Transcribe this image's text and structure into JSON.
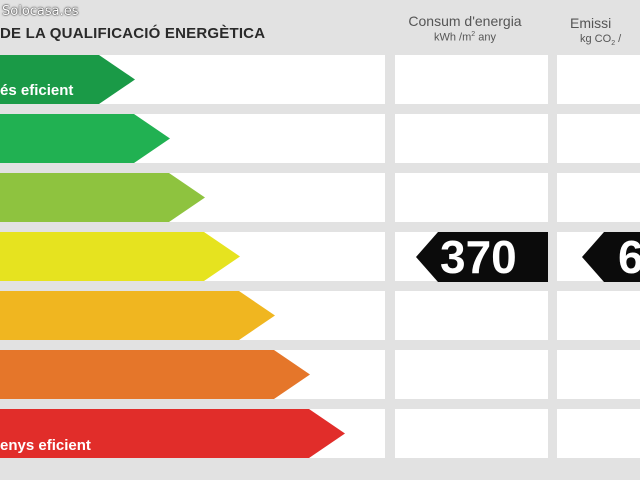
{
  "watermark": "Solocasa.es",
  "header": {
    "title": "DE LA QUALIFICACIÓ ENERGÈTICA",
    "energy_column": {
      "label": "Consum d'energia",
      "unit_prefix": "kWh /m",
      "unit_exp": "2",
      "unit_suffix": " any"
    },
    "emissions_column": {
      "label": "Emissi",
      "unit_prefix": "kg CO",
      "unit_sub": "2",
      "unit_suffix": " / "
    }
  },
  "scale": {
    "top_label": "és eficient",
    "bottom_label": "enys eficient",
    "colors": [
      "#1a9a47",
      "#21b152",
      "#8ec33f",
      "#e6e31f",
      "#f0b620",
      "#e5762a",
      "#e12d2a"
    ]
  },
  "rating": {
    "energy_value": "370",
    "emissions_value": "6"
  }
}
